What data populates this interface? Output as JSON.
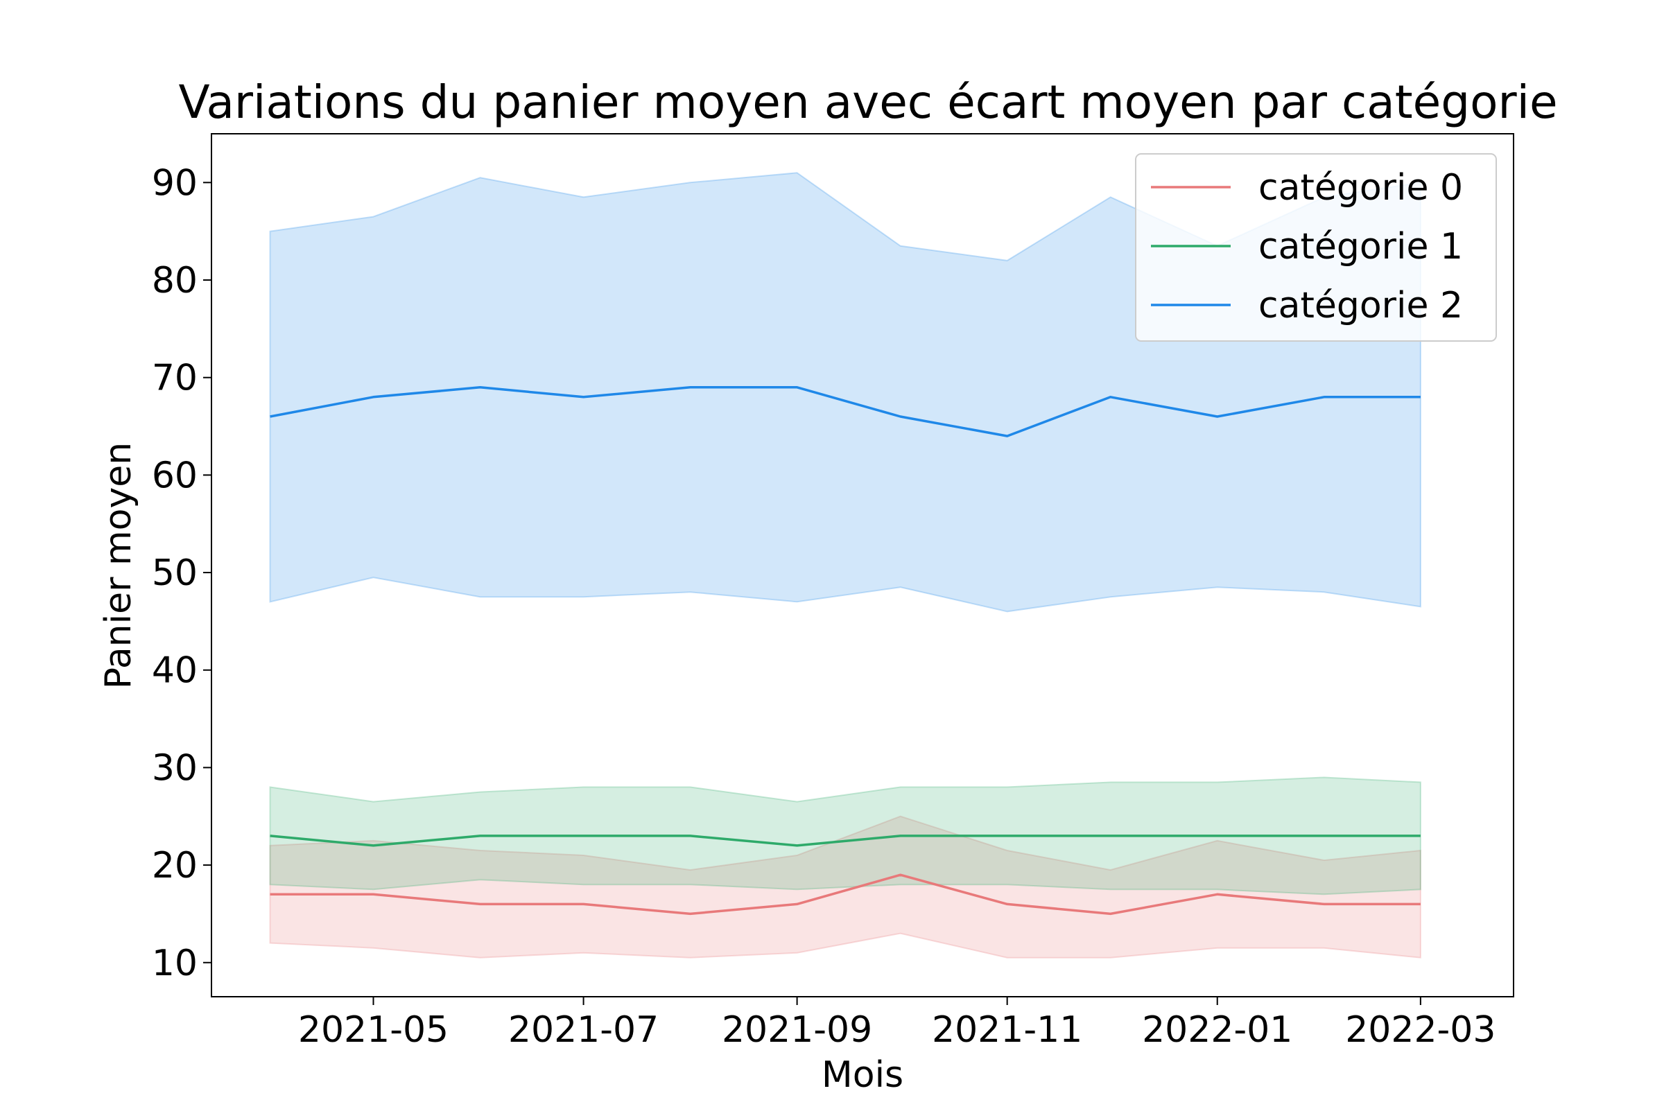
{
  "chart_data": {
    "type": "line",
    "title": "Variations du panier moyen avec écart moyen par catégorie",
    "xlabel": "Mois",
    "ylabel": "Panier moyen",
    "x": [
      "2021-04",
      "2021-05",
      "2021-06",
      "2021-07",
      "2021-08",
      "2021-09",
      "2021-10",
      "2021-11",
      "2021-12",
      "2022-01",
      "2022-02",
      "2022-03"
    ],
    "x_ticks": [
      "2021-05",
      "2021-07",
      "2021-09",
      "2021-11",
      "2022-01",
      "2022-03"
    ],
    "y_ticks": [
      10,
      20,
      30,
      40,
      50,
      60,
      70,
      80,
      90
    ],
    "ylim": [
      6.5,
      95
    ],
    "xlim": [
      "2021-03-15",
      "2022-03-28"
    ],
    "grid": false,
    "legend_position": "top-right",
    "series": [
      {
        "name": "catégorie 0",
        "color": "#e8797a",
        "values": [
          17,
          17,
          16,
          16,
          15,
          16,
          19,
          16,
          15,
          17,
          16,
          16
        ],
        "lower": [
          12,
          11.5,
          10.5,
          11,
          10.5,
          11,
          13,
          10.5,
          10.5,
          11.5,
          11.5,
          10.5
        ],
        "upper": [
          22,
          22.5,
          21.5,
          21,
          19.5,
          21,
          25,
          21.5,
          19.5,
          22.5,
          20.5,
          21.5
        ]
      },
      {
        "name": "catégorie 1",
        "color": "#2eaa6a",
        "values": [
          23,
          22,
          23,
          23,
          23,
          22,
          23,
          23,
          23,
          23,
          23,
          23
        ],
        "lower": [
          18,
          17.5,
          18.5,
          18,
          18,
          17.5,
          18,
          18,
          17.5,
          17.5,
          17,
          17.5
        ],
        "upper": [
          28,
          26.5,
          27.5,
          28,
          28,
          26.5,
          28,
          28,
          28.5,
          28.5,
          29,
          28.5
        ]
      },
      {
        "name": "catégorie 2",
        "color": "#1f88e8",
        "values": [
          66,
          68,
          69,
          68,
          69,
          69,
          66,
          64,
          68,
          66,
          68,
          68
        ],
        "lower": [
          47,
          49.5,
          47.5,
          47.5,
          48,
          47,
          48.5,
          46,
          47.5,
          48.5,
          48,
          46.5
        ],
        "upper": [
          85,
          86.5,
          90.5,
          88.5,
          90,
          91,
          83.5,
          82,
          88.5,
          83.5,
          88.5,
          90
        ]
      }
    ]
  }
}
